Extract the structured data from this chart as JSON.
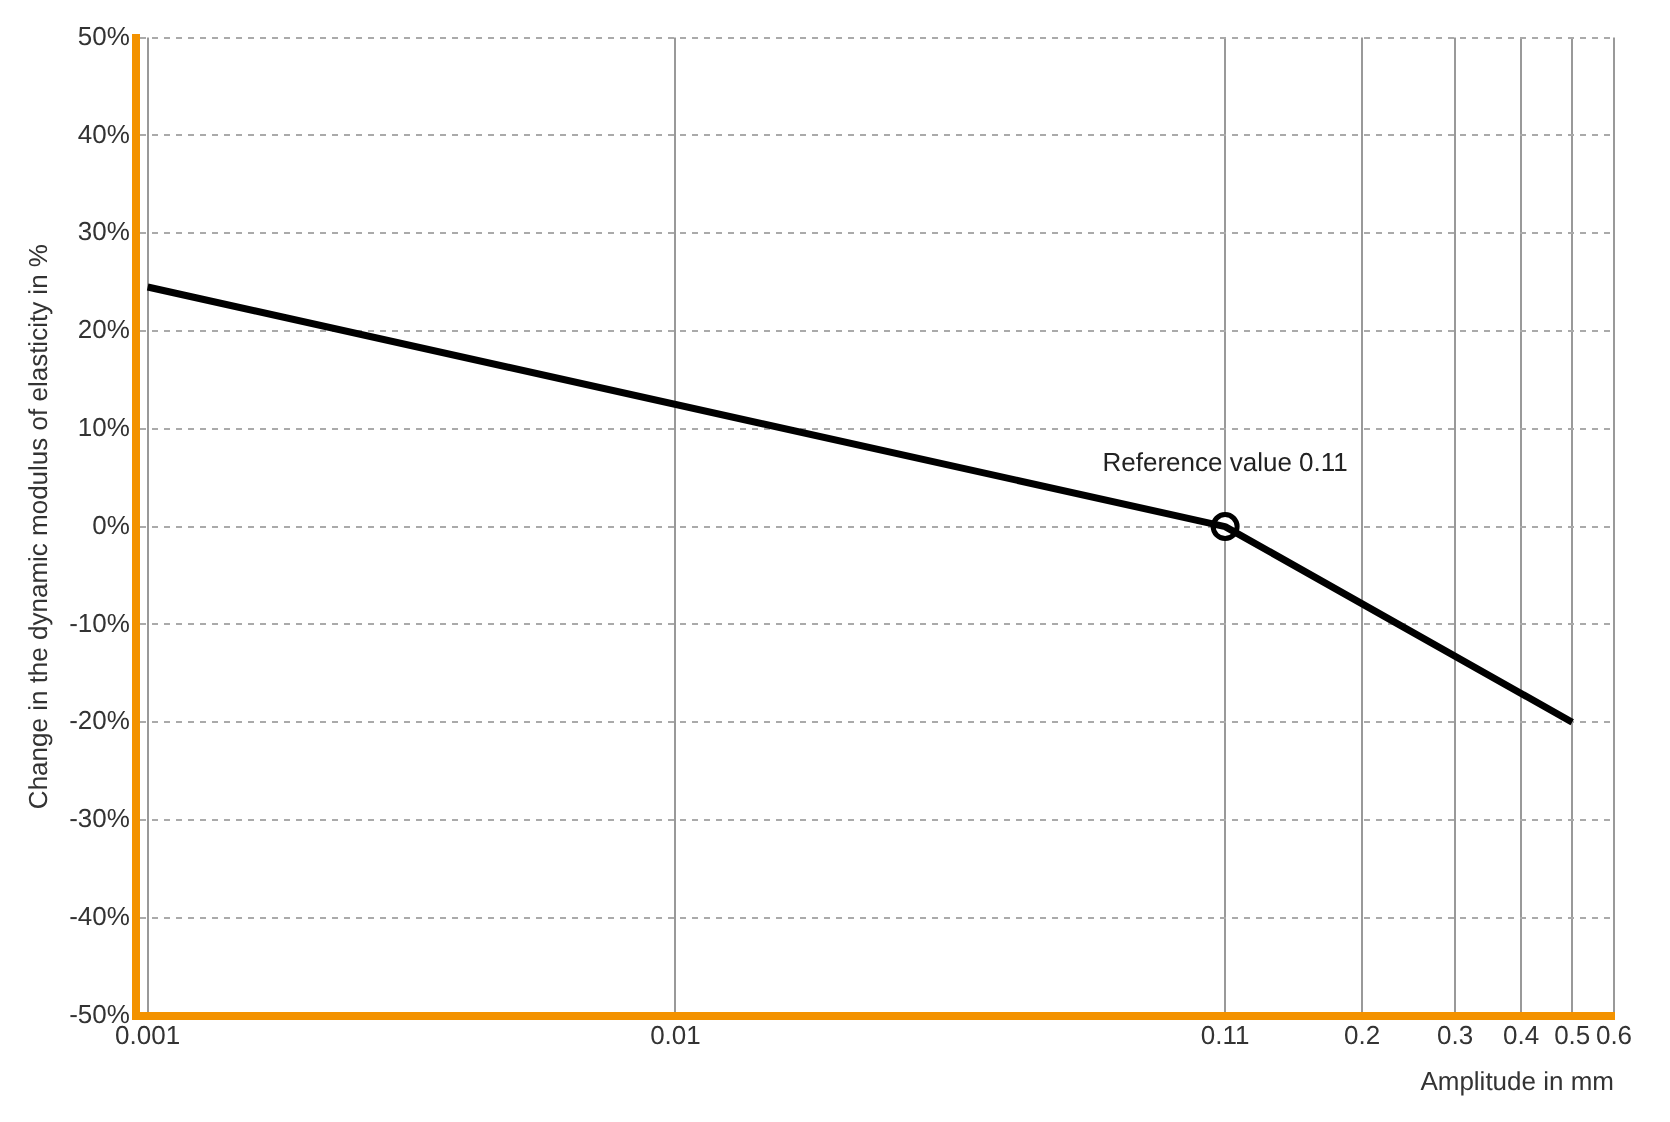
{
  "chart_data": {
    "type": "line",
    "xlabel": "Amplitude in mm",
    "ylabel": "Change in the dynamic modulus of elasticity in %",
    "log": "x",
    "xlim": [
      0.00095,
      0.6
    ],
    "xticks": [
      0.001,
      0.01,
      0.11,
      0.2,
      0.3,
      0.4,
      0.5,
      0.6
    ],
    "ylim": [
      -50,
      50
    ],
    "yticks": [
      {
        "value": -50,
        "label": "-50%"
      },
      {
        "value": -40,
        "label": "-40%"
      },
      {
        "value": -30,
        "label": "-30%"
      },
      {
        "value": -20,
        "label": "-20%"
      },
      {
        "value": -10,
        "label": "-10%"
      },
      {
        "value": 0,
        "label": "0%"
      },
      {
        "value": 10,
        "label": "10%"
      },
      {
        "value": 20,
        "label": "20%"
      },
      {
        "value": 30,
        "label": "30%"
      },
      {
        "value": 40,
        "label": "40%"
      },
      {
        "value": 50,
        "label": "50%"
      }
    ],
    "grid": true,
    "legend": false,
    "series": [
      {
        "color": "#000000",
        "x": [
          0.001,
          0.11,
          0.5
        ],
        "values": [
          24.5,
          0,
          -20
        ],
        "marker": "none"
      },
      {
        "type": "scatter",
        "color": "#000000",
        "x": [
          0.11
        ],
        "values": [
          0
        ],
        "marker": "circle"
      }
    ],
    "annotations": [
      {
        "text": "Reference value 0.11",
        "x": 0.11,
        "y": 0
      }
    ]
  }
}
